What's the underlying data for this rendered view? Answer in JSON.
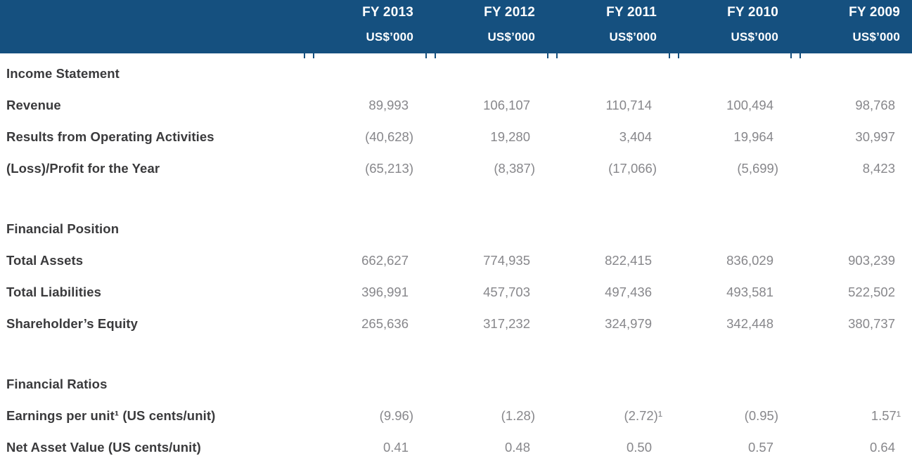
{
  "table": {
    "columns": [
      {
        "year": "FY 2013",
        "unit": "US$’000"
      },
      {
        "year": "FY 2012",
        "unit": "US$’000"
      },
      {
        "year": "FY 2011",
        "unit": "US$’000"
      },
      {
        "year": "FY 2010",
        "unit": "US$’000"
      },
      {
        "year": "FY 2009",
        "unit": "US$’000"
      }
    ],
    "sections": [
      {
        "title": "Income Statement",
        "rows": [
          {
            "label": "Revenue",
            "values": [
              "89,993",
              "106,107",
              "110,714",
              "100,494",
              "98,768"
            ]
          },
          {
            "label": "Results from Operating Activities",
            "values": [
              "(40,628)",
              "19,280",
              "3,404",
              "19,964",
              "30,997"
            ]
          },
          {
            "label": "(Loss)/Profit for the Year",
            "values": [
              "(65,213)",
              "(8,387)",
              "(17,066)",
              "(5,699)",
              "8,423"
            ]
          }
        ]
      },
      {
        "title": "Financial Position",
        "rows": [
          {
            "label": "Total Assets",
            "values": [
              "662,627",
              "774,935",
              "822,415",
              "836,029",
              "903,239"
            ]
          },
          {
            "label": "Total Liabilities",
            "values": [
              "396,991",
              "457,703",
              "497,436",
              "493,581",
              "522,502"
            ]
          },
          {
            "label": "Shareholder’s Equity",
            "values": [
              "265,636",
              "317,232",
              "324,979",
              "342,448",
              "380,737"
            ]
          }
        ]
      },
      {
        "title": "Financial Ratios",
        "rows": [
          {
            "label": "Earnings per unit¹ (US cents/unit)",
            "values": [
              "(9.96)",
              "(1.28)",
              "(2.72)¹",
              "(0.95)",
              "1.57¹"
            ]
          },
          {
            "label": "Net Asset Value (US cents/unit)",
            "values": [
              "0.41",
              "0.48",
              "0.50",
              "0.57",
              "0.64"
            ]
          }
        ]
      }
    ],
    "colors": {
      "header_background": "#15507F",
      "header_text": "#FFFFFF",
      "label_text": "#3A3A3C",
      "value_text": "#87878B"
    }
  }
}
